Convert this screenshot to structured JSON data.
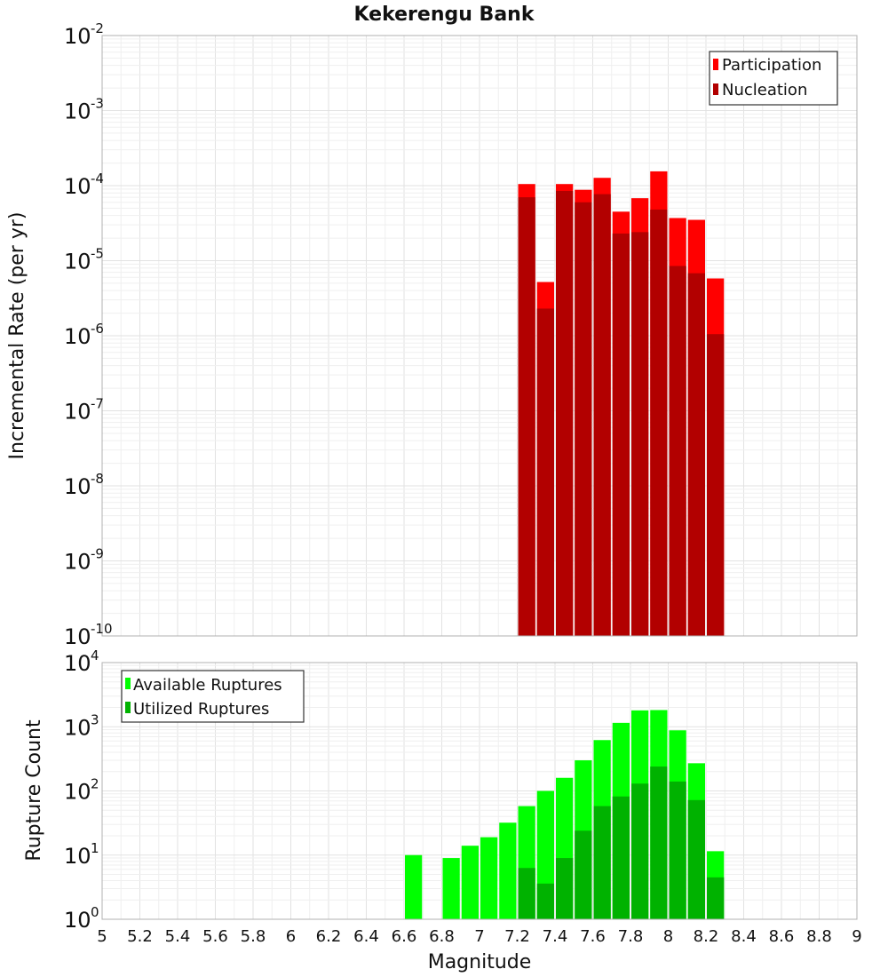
{
  "chart_data": [
    {
      "type": "bar",
      "title": "Kekerengu Bank",
      "ylabel": "Incremental Rate (per yr)",
      "yscale": "log",
      "ylim": [
        1e-10,
        0.01
      ],
      "xlim": [
        5,
        9
      ],
      "grid": true,
      "legend_position": "top-right",
      "legend": [
        "Participation",
        "Nucleation"
      ],
      "x": [
        7.25,
        7.35,
        7.45,
        7.55,
        7.65,
        7.75,
        7.85,
        7.95,
        8.05,
        8.15,
        8.25
      ],
      "series": [
        {
          "name": "Participation",
          "color": "#ff0000",
          "values": [
            0.000105,
            5.2e-06,
            0.000105,
            8.8e-05,
            0.000127,
            4.5e-05,
            6.8e-05,
            0.000155,
            3.7e-05,
            3.5e-05,
            5.8e-06
          ]
        },
        {
          "name": "Nucleation",
          "color": "#b20000",
          "values": [
            7e-05,
            2.3e-06,
            8.5e-05,
            6e-05,
            7.7e-05,
            2.3e-05,
            2.4e-05,
            4.8e-05,
            8.5e-06,
            6.8e-06,
            1.05e-06
          ]
        }
      ]
    },
    {
      "type": "bar",
      "title": "",
      "xlabel": "Magnitude",
      "ylabel": "Rupture Count",
      "yscale": "log",
      "ylim": [
        1,
        10000.0
      ],
      "xlim": [
        5,
        9
      ],
      "grid": true,
      "legend_position": "top-left",
      "legend": [
        "Available Ruptures",
        "Utilized Ruptures"
      ],
      "x_ticks": [
        "5",
        "5.2",
        "5.4",
        "5.6",
        "5.8",
        "6",
        "6.2",
        "6.4",
        "6.6",
        "6.8",
        "7",
        "7.2",
        "7.4",
        "7.6",
        "7.8",
        "8",
        "8.2",
        "8.4",
        "8.6",
        "8.8",
        "9"
      ],
      "x": [
        6.65,
        6.85,
        6.95,
        7.05,
        7.15,
        7.25,
        7.35,
        7.45,
        7.55,
        7.65,
        7.75,
        7.85,
        7.95,
        8.05,
        8.15,
        8.25
      ],
      "series": [
        {
          "name": "Available Ruptures",
          "color": "#00ff00",
          "values": [
            10,
            9,
            14,
            19,
            32,
            58,
            100,
            160,
            300,
            620,
            1150,
            1800,
            1820,
            880,
            270,
            11.5
          ]
        },
        {
          "name": "Utilized Ruptures",
          "color": "#00b200",
          "values": [
            null,
            null,
            null,
            null,
            null,
            6.3,
            3.6,
            9,
            24,
            58,
            82,
            130,
            240,
            140,
            72,
            4.5
          ]
        }
      ]
    }
  ]
}
